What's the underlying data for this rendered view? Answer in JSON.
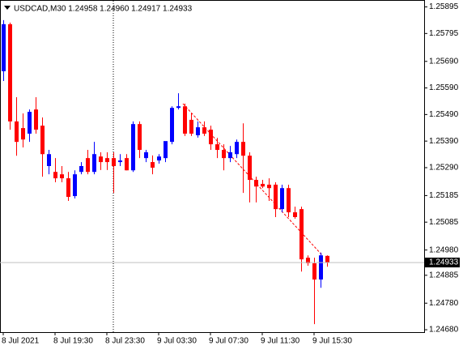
{
  "chart_data": {
    "type": "candlestick",
    "title": "USDCAD,M30  1.24958 1.24960 1.24917 1.24933",
    "categories": [
      "8 Jul 2021",
      null,
      null,
      null,
      null,
      null,
      null,
      null,
      "8 Jul 19:30",
      null,
      null,
      null,
      null,
      null,
      null,
      null,
      "8 Jul 23:30",
      null,
      null,
      null,
      null,
      null,
      null,
      null,
      "9 Jul 03:30",
      null,
      null,
      null,
      null,
      null,
      null,
      null,
      "9 Jul 07:30",
      null,
      null,
      null,
      null,
      null,
      null,
      null,
      "9 Jul 11:30",
      null,
      null,
      null,
      null,
      null,
      null,
      null,
      "9 Jul 15:30",
      null,
      null
    ],
    "open": [
      1.25653,
      1.2583,
      1.25464,
      1.25439,
      1.25418,
      1.25509,
      1.25448,
      1.25296,
      1.25274,
      1.25265,
      1.2525,
      1.25183,
      1.25274,
      1.25326,
      1.25274,
      1.25332,
      1.25326,
      1.25326,
      1.25311,
      1.25326,
      1.2528,
      1.25454,
      1.25326,
      1.25311,
      1.25317,
      1.25326,
      1.25387,
      1.25515,
      1.25521,
      1.2547,
      1.25412,
      1.25442,
      1.25433,
      1.25378,
      1.25357,
      1.25326,
      1.25341,
      1.25387,
      1.25335,
      1.25244,
      1.25229,
      1.25226,
      1.25226,
      1.25134,
      1.25213,
      1.25122,
      1.25134,
      1.24951,
      1.2493,
      1.24869,
      1.24958
    ],
    "high": [
      1.25845,
      1.25836,
      1.25555,
      1.25494,
      1.25509,
      1.25555,
      1.25479,
      1.25357,
      1.25326,
      1.25296,
      1.25274,
      1.2528,
      1.25311,
      1.25357,
      1.25387,
      1.25348,
      1.25348,
      1.25348,
      1.25341,
      1.25341,
      1.25464,
      1.25464,
      1.25357,
      1.25336,
      1.25341,
      1.25388,
      1.25521,
      1.2557,
      1.25531,
      1.25494,
      1.25464,
      1.25464,
      1.25448,
      1.25402,
      1.25378,
      1.25372,
      1.25396,
      1.25457,
      1.25348,
      1.25256,
      1.25244,
      1.2525,
      1.25235,
      1.25226,
      1.25226,
      1.25143,
      1.25143,
      1.2496,
      1.24951,
      1.2497,
      1.2496
    ],
    "low": [
      1.25616,
      1.25433,
      1.25335,
      1.25366,
      1.25387,
      1.25418,
      1.25256,
      1.25265,
      1.25235,
      1.25235,
      1.25165,
      1.25174,
      1.25265,
      1.25265,
      1.25265,
      1.25281,
      1.25281,
      1.25195,
      1.25296,
      1.2528,
      1.25274,
      1.25326,
      1.25311,
      1.25265,
      1.25305,
      1.25311,
      1.25378,
      1.25509,
      1.25409,
      1.25409,
      1.25403,
      1.25409,
      1.25357,
      1.25326,
      1.2528,
      1.25311,
      1.25326,
      1.25195,
      1.25159,
      1.25159,
      1.25213,
      1.25165,
      1.25104,
      1.25122,
      1.25104,
      1.25098,
      1.24899,
      1.24921,
      1.24701,
      1.24838,
      1.24917
    ],
    "close": [
      1.2583,
      1.25464,
      1.25387,
      1.25396,
      1.255,
      1.25433,
      1.25341,
      1.25341,
      1.2525,
      1.2525,
      1.2518,
      1.25265,
      1.25296,
      1.25274,
      1.25341,
      1.25311,
      1.25311,
      1.25296,
      1.25317,
      1.2528,
      1.25454,
      1.25357,
      1.25348,
      1.2529,
      1.25332,
      1.2539,
      1.25515,
      1.25521,
      1.25418,
      1.25418,
      1.25442,
      1.25418,
      1.25378,
      1.25357,
      1.25326,
      1.25348,
      1.25387,
      1.25335,
      1.25244,
      1.25219,
      1.25219,
      1.25213,
      1.25134,
      1.25213,
      1.25122,
      1.25104,
      1.24945,
      1.2493,
      1.24869,
      1.2496,
      1.24933
    ],
    "up_color": "#0000ff",
    "down_color": "#ff0000",
    "ylim": [
      1.24671,
      1.25921
    ],
    "yticks": [
      1.25895,
      1.25795,
      {
        "value": 1.2569,
        "label": "1.25690"
      },
      {
        "value": 1.2559,
        "label": "1.25590"
      },
      {
        "value": 1.2549,
        "label": "1.25490"
      },
      {
        "value": 1.2539,
        "label": "1.25390"
      },
      {
        "value": 1.2529,
        "label": "1.25290"
      },
      1.25185,
      1.25085,
      {
        "value": 1.2498,
        "label": "1.24980"
      },
      1.24885,
      {
        "value": 1.2478,
        "label": "1.24780"
      },
      {
        "value": 1.2468,
        "label": "1.24680"
      }
    ],
    "last_price": 1.24933
  }
}
